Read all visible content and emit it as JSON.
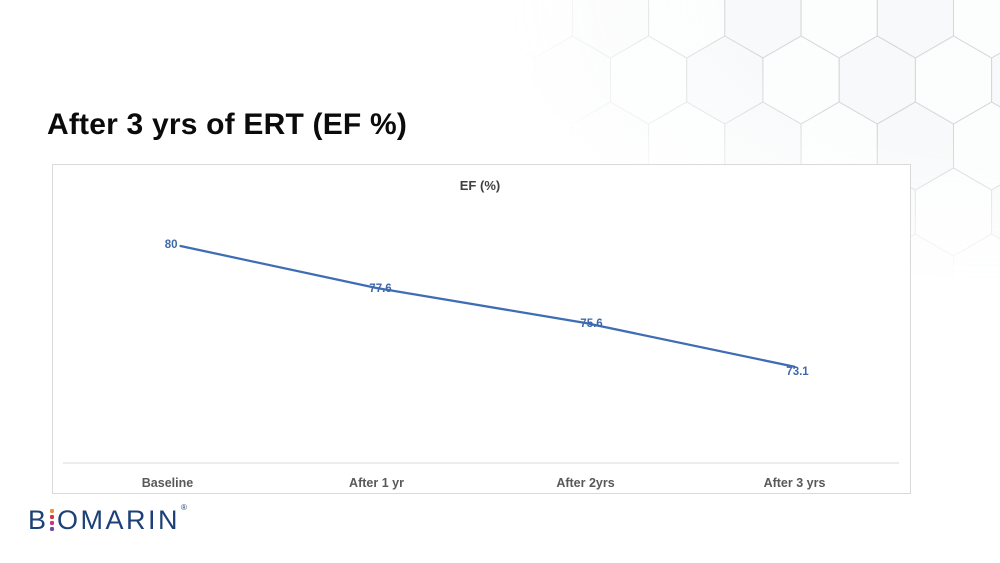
{
  "slide": {
    "title": "After 3 yrs of ERT (EF %)"
  },
  "logo": {
    "text_b": "B",
    "text_rest": "OMARIN",
    "trademark": "®",
    "navy": "#1C4077",
    "i_dot_colors": [
      "#EF8E3B",
      "#D63440",
      "#C13690",
      "#6B4FA0"
    ]
  },
  "chart_data": {
    "type": "line",
    "title": "EF (%)",
    "categories": [
      "Baseline",
      "After 1 yr",
      "After 2yrs",
      "After 3 yrs"
    ],
    "series": [
      {
        "name": "EF (%)",
        "values": [
          80,
          77.6,
          75.6,
          73.1
        ]
      }
    ],
    "data_labels": [
      "80",
      "77.6",
      "75.6",
      "73.1"
    ],
    "ylim": [
      67.5,
      81
    ],
    "grid": false,
    "legend": "none",
    "line_color": "#3E6CB5",
    "data_label_color": "#3E68A8",
    "axis_color": "#D9D9D9",
    "category_label_color": "#595959",
    "title_color": "#404040"
  }
}
